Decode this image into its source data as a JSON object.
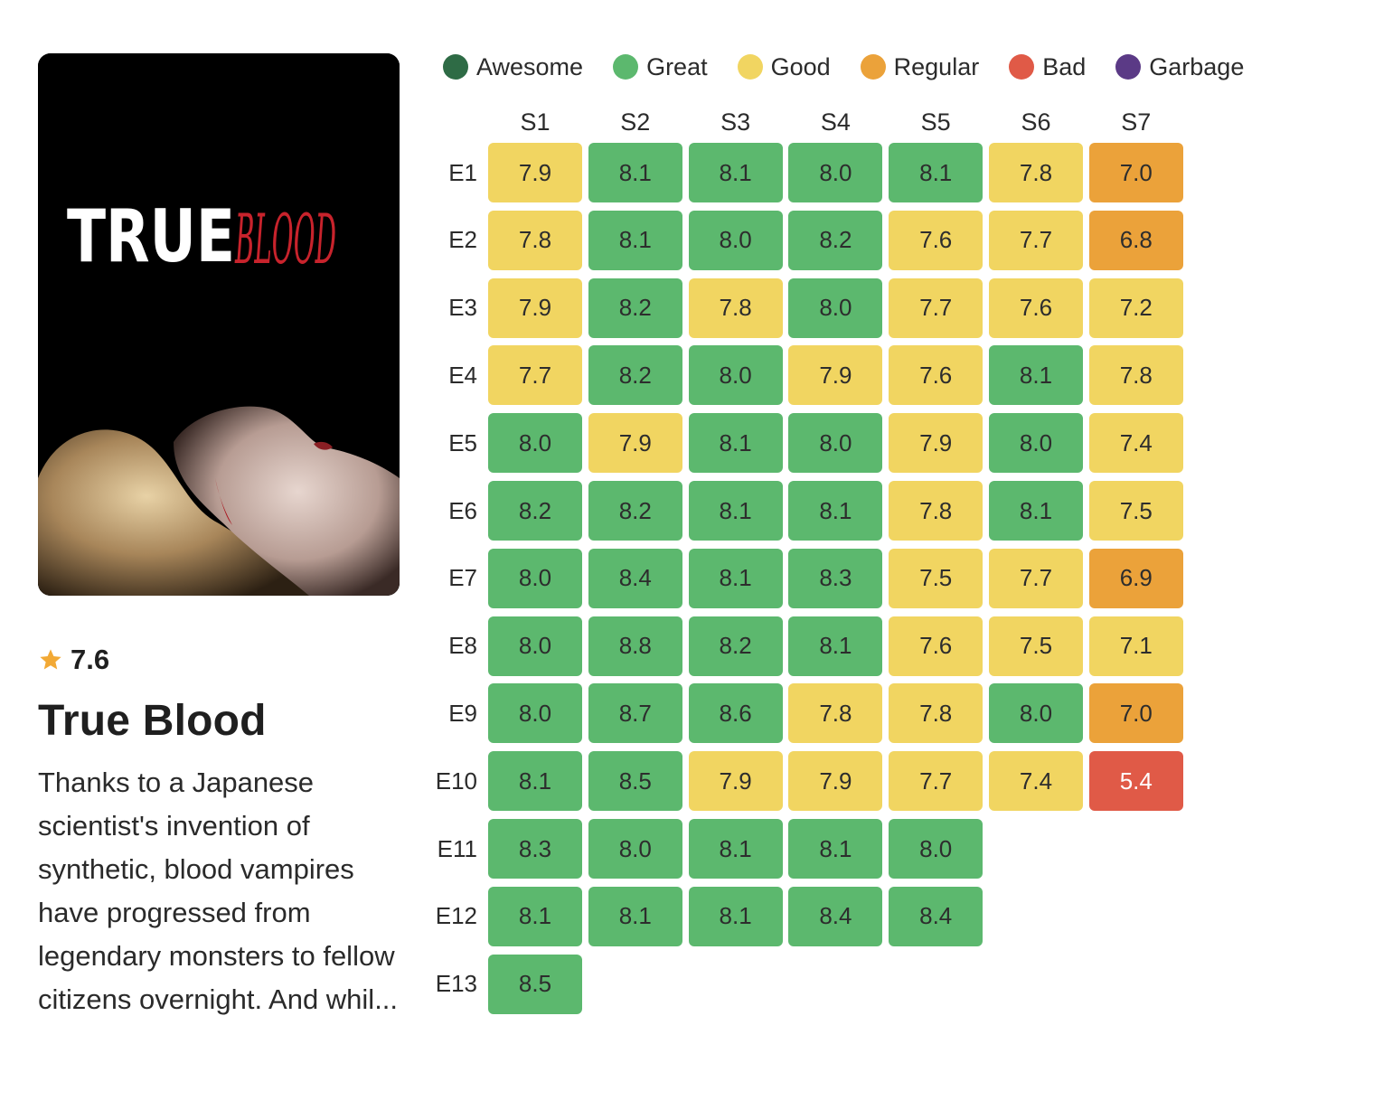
{
  "show": {
    "title": "True Blood",
    "rating": "7.6",
    "synopsis": "Thanks to a Japanese scientist's invention of synthetic, blood vampires have progressed from legendary monsters to fellow citizens overnight. And whil...",
    "poster": {
      "logo_text_white": "TRUE",
      "logo_text_red": "BLOOD"
    }
  },
  "legend": [
    {
      "label": "Awesome",
      "color": "#2e6b45"
    },
    {
      "label": "Great",
      "color": "#5cb86e"
    },
    {
      "label": "Good",
      "color": "#f1d561"
    },
    {
      "label": "Regular",
      "color": "#eba23a"
    },
    {
      "label": "Bad",
      "color": "#e05a47"
    },
    {
      "label": "Garbage",
      "color": "#5b3a86"
    }
  ],
  "chart_data": {
    "type": "heatmap",
    "columns": [
      "S1",
      "S2",
      "S3",
      "S4",
      "S5",
      "S6",
      "S7"
    ],
    "rows": [
      "E1",
      "E2",
      "E3",
      "E4",
      "E5",
      "E6",
      "E7",
      "E8",
      "E9",
      "E10",
      "E11",
      "E12",
      "E13"
    ],
    "values": [
      [
        "7.9",
        "8.1",
        "8.1",
        "8.0",
        "8.1",
        "7.8",
        "7.0"
      ],
      [
        "7.8",
        "8.1",
        "8.0",
        "8.2",
        "7.6",
        "7.7",
        "6.8"
      ],
      [
        "7.9",
        "8.2",
        "7.8",
        "8.0",
        "7.7",
        "7.6",
        "7.2"
      ],
      [
        "7.7",
        "8.2",
        "8.0",
        "7.9",
        "7.6",
        "8.1",
        "7.8"
      ],
      [
        "8.0",
        "7.9",
        "8.1",
        "8.0",
        "7.9",
        "8.0",
        "7.4"
      ],
      [
        "8.2",
        "8.2",
        "8.1",
        "8.1",
        "7.8",
        "8.1",
        "7.5"
      ],
      [
        "8.0",
        "8.4",
        "8.1",
        "8.3",
        "7.5",
        "7.7",
        "6.9"
      ],
      [
        "8.0",
        "8.8",
        "8.2",
        "8.1",
        "7.6",
        "7.5",
        "7.1"
      ],
      [
        "8.0",
        "8.7",
        "8.6",
        "7.8",
        "7.8",
        "8.0",
        "7.0"
      ],
      [
        "8.1",
        "8.5",
        "7.9",
        "7.9",
        "7.7",
        "7.4",
        "5.4"
      ],
      [
        "8.3",
        "8.0",
        "8.1",
        "8.1",
        "8.0",
        null,
        null
      ],
      [
        "8.1",
        "8.1",
        "8.1",
        "8.4",
        "8.4",
        null,
        null
      ],
      [
        "8.5",
        null,
        null,
        null,
        null,
        null,
        null
      ]
    ],
    "categories": [
      [
        "Good",
        "Great",
        "Great",
        "Great",
        "Great",
        "Good",
        "Regular"
      ],
      [
        "Good",
        "Great",
        "Great",
        "Great",
        "Good",
        "Good",
        "Regular"
      ],
      [
        "Good",
        "Great",
        "Good",
        "Great",
        "Good",
        "Good",
        "Good"
      ],
      [
        "Good",
        "Great",
        "Great",
        "Good",
        "Good",
        "Great",
        "Good"
      ],
      [
        "Great",
        "Good",
        "Great",
        "Great",
        "Good",
        "Great",
        "Good"
      ],
      [
        "Great",
        "Great",
        "Great",
        "Great",
        "Good",
        "Great",
        "Good"
      ],
      [
        "Great",
        "Great",
        "Great",
        "Great",
        "Good",
        "Good",
        "Regular"
      ],
      [
        "Great",
        "Great",
        "Great",
        "Great",
        "Good",
        "Good",
        "Good"
      ],
      [
        "Great",
        "Great",
        "Great",
        "Good",
        "Good",
        "Great",
        "Regular"
      ],
      [
        "Great",
        "Great",
        "Good",
        "Good",
        "Good",
        "Good",
        "Bad"
      ],
      [
        "Great",
        "Great",
        "Great",
        "Great",
        "Great",
        null,
        null
      ],
      [
        "Great",
        "Great",
        "Great",
        "Great",
        "Great",
        null,
        null
      ],
      [
        "Great",
        null,
        null,
        null,
        null,
        null,
        null
      ]
    ]
  }
}
